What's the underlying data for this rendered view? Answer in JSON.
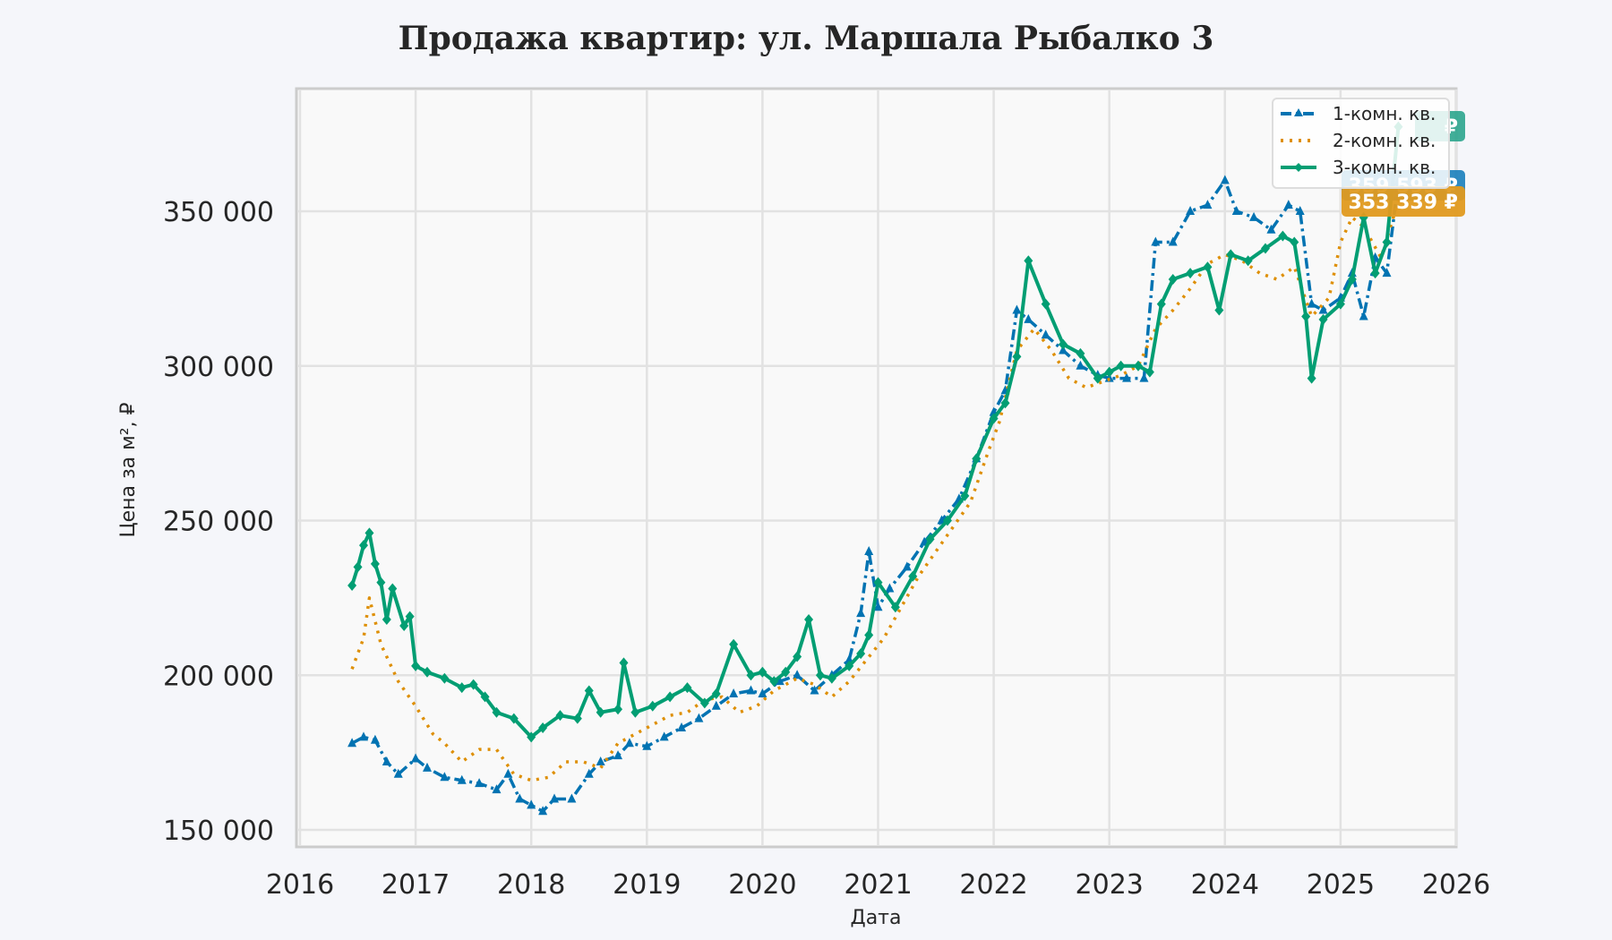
{
  "chart_data": {
    "type": "line",
    "title": "Продажа квартир: ул. Маршала Рыбалко 3",
    "xlabel": "Дата",
    "ylabel": "Цена за м², ₽",
    "xlim": [
      2016,
      2026
    ],
    "ylim": [
      145000,
      390000
    ],
    "x_ticks": [
      "2016",
      "2017",
      "2018",
      "2019",
      "2020",
      "2021",
      "2022",
      "2023",
      "2024",
      "2025",
      "2026"
    ],
    "y_ticks": [
      "150 000",
      "200 000",
      "250 000",
      "300 000",
      "350 000"
    ],
    "y_tick_values": [
      150000,
      200000,
      250000,
      300000,
      350000
    ],
    "grid": true,
    "legend_position": "upper right",
    "series": [
      {
        "name": "1-комн. кв.",
        "color": "#0173b2",
        "style": "dashdot",
        "marker": "triangle",
        "x": [
          2016.45,
          2016.55,
          2016.65,
          2016.75,
          2016.85,
          2017.0,
          2017.1,
          2017.25,
          2017.4,
          2017.55,
          2017.7,
          2017.8,
          2017.9,
          2018.0,
          2018.1,
          2018.2,
          2018.35,
          2018.5,
          2018.6,
          2018.75,
          2018.85,
          2019.0,
          2019.15,
          2019.3,
          2019.45,
          2019.6,
          2019.75,
          2019.9,
          2020.0,
          2020.15,
          2020.3,
          2020.45,
          2020.6,
          2020.75,
          2020.85,
          2020.92,
          2021.0,
          2021.1,
          2021.25,
          2021.4,
          2021.55,
          2021.7,
          2021.85,
          2022.0,
          2022.1,
          2022.2,
          2022.3,
          2022.45,
          2022.6,
          2022.75,
          2022.9,
          2023.0,
          2023.15,
          2023.3,
          2023.4,
          2023.55,
          2023.7,
          2023.85,
          2024.0,
          2024.1,
          2024.25,
          2024.4,
          2024.55,
          2024.65,
          2024.75,
          2024.85,
          2025.0,
          2025.1,
          2025.2,
          2025.3,
          2025.4,
          2025.5
        ],
        "values": [
          178000,
          180000,
          179000,
          172000,
          168000,
          173000,
          170000,
          167000,
          166000,
          165000,
          163000,
          168000,
          160000,
          158000,
          156000,
          160000,
          160000,
          168000,
          172000,
          174000,
          178000,
          177000,
          180000,
          183000,
          186000,
          190000,
          194000,
          195000,
          194000,
          198000,
          200000,
          195000,
          200000,
          205000,
          220000,
          240000,
          222000,
          228000,
          235000,
          243000,
          250000,
          257000,
          270000,
          285000,
          292000,
          318000,
          315000,
          310000,
          305000,
          300000,
          297000,
          296000,
          296000,
          296000,
          340000,
          340000,
          350000,
          352000,
          360000,
          350000,
          348000,
          344000,
          352000,
          350000,
          320000,
          318000,
          322000,
          330000,
          316000,
          335000,
          330000,
          359593
        ]
      },
      {
        "name": "2-комн. кв.",
        "color": "#de8f05",
        "style": "dotted",
        "marker": "none",
        "x": [
          2016.45,
          2016.55,
          2016.6,
          2016.7,
          2016.85,
          2017.0,
          2017.15,
          2017.25,
          2017.4,
          2017.55,
          2017.7,
          2017.85,
          2018.0,
          2018.15,
          2018.3,
          2018.45,
          2018.6,
          2018.75,
          2018.9,
          2019.05,
          2019.2,
          2019.35,
          2019.5,
          2019.65,
          2019.8,
          2019.95,
          2020.1,
          2020.3,
          2020.45,
          2020.6,
          2020.75,
          2020.9,
          2021.05,
          2021.2,
          2021.35,
          2021.5,
          2021.65,
          2021.8,
          2021.95,
          2022.05,
          2022.2,
          2022.35,
          2022.5,
          2022.65,
          2022.8,
          2022.95,
          2023.1,
          2023.25,
          2023.4,
          2023.55,
          2023.7,
          2023.85,
          2024.0,
          2024.15,
          2024.3,
          2024.45,
          2024.6,
          2024.75,
          2024.9,
          2025.0,
          2025.1,
          2025.2,
          2025.35,
          2025.5
        ],
        "values": [
          202000,
          212000,
          225000,
          210000,
          198000,
          190000,
          181000,
          178000,
          172000,
          176000,
          176000,
          168000,
          166000,
          167000,
          172000,
          172000,
          170000,
          178000,
          181000,
          184000,
          187000,
          188000,
          192000,
          193000,
          188000,
          190000,
          195000,
          199000,
          197000,
          193000,
          198000,
          205000,
          212000,
          222000,
          232000,
          240000,
          248000,
          256000,
          272000,
          282000,
          305000,
          312000,
          305000,
          296000,
          293000,
          295000,
          297000,
          300000,
          312000,
          318000,
          325000,
          333000,
          336000,
          334000,
          330000,
          328000,
          332000,
          316000,
          322000,
          340000,
          348000,
          345000,
          335000,
          353339
        ]
      },
      {
        "name": "3-комн. кв.",
        "color": "#029e73",
        "style": "solid",
        "marker": "diamond",
        "x": [
          2016.45,
          2016.5,
          2016.55,
          2016.6,
          2016.65,
          2016.7,
          2016.75,
          2016.8,
          2016.9,
          2016.95,
          2017.0,
          2017.1,
          2017.25,
          2017.4,
          2017.5,
          2017.6,
          2017.7,
          2017.85,
          2018.0,
          2018.1,
          2018.25,
          2018.4,
          2018.5,
          2018.6,
          2018.75,
          2018.8,
          2018.9,
          2019.05,
          2019.2,
          2019.35,
          2019.5,
          2019.6,
          2019.75,
          2019.9,
          2020.0,
          2020.1,
          2020.2,
          2020.3,
          2020.4,
          2020.5,
          2020.6,
          2020.75,
          2020.85,
          2020.92,
          2021.0,
          2021.15,
          2021.3,
          2021.45,
          2021.6,
          2021.75,
          2021.85,
          2022.0,
          2022.1,
          2022.2,
          2022.3,
          2022.45,
          2022.6,
          2022.75,
          2022.9,
          2023.0,
          2023.1,
          2023.25,
          2023.35,
          2023.45,
          2023.55,
          2023.7,
          2023.85,
          2023.95,
          2024.05,
          2024.2,
          2024.35,
          2024.5,
          2024.6,
          2024.7,
          2024.75,
          2024.85,
          2025.0,
          2025.1,
          2025.2,
          2025.3,
          2025.4,
          2025.5
        ],
        "values": [
          229000,
          235000,
          242000,
          246000,
          236000,
          230000,
          218000,
          228000,
          216000,
          219000,
          203000,
          201000,
          199000,
          196000,
          197000,
          193000,
          188000,
          186000,
          180000,
          183000,
          187000,
          186000,
          195000,
          188000,
          189000,
          204000,
          188000,
          190000,
          193000,
          196000,
          191000,
          194000,
          210000,
          200000,
          201000,
          198000,
          201000,
          206000,
          218000,
          200000,
          199000,
          203000,
          207000,
          213000,
          230000,
          222000,
          232000,
          244000,
          250000,
          258000,
          270000,
          283000,
          288000,
          303000,
          334000,
          320000,
          307000,
          304000,
          296000,
          298000,
          300000,
          300000,
          298000,
          320000,
          328000,
          330000,
          332000,
          318000,
          336000,
          334000,
          338000,
          342000,
          340000,
          316000,
          296000,
          315000,
          320000,
          328000,
          348000,
          330000,
          340000,
          377329
        ]
      }
    ],
    "annotations": [
      {
        "label": "377 329 ₽",
        "series": "3-комн. кв.",
        "color": "#2ca58d",
        "y": 377329
      },
      {
        "label": "359 593 ₽",
        "series": "1-комн. кв.",
        "color": "#1a80bb",
        "y": 359593
      },
      {
        "label": "353 339 ₽",
        "series": "2-комн. кв.",
        "color": "#e09a1f",
        "y": 353339
      }
    ]
  }
}
